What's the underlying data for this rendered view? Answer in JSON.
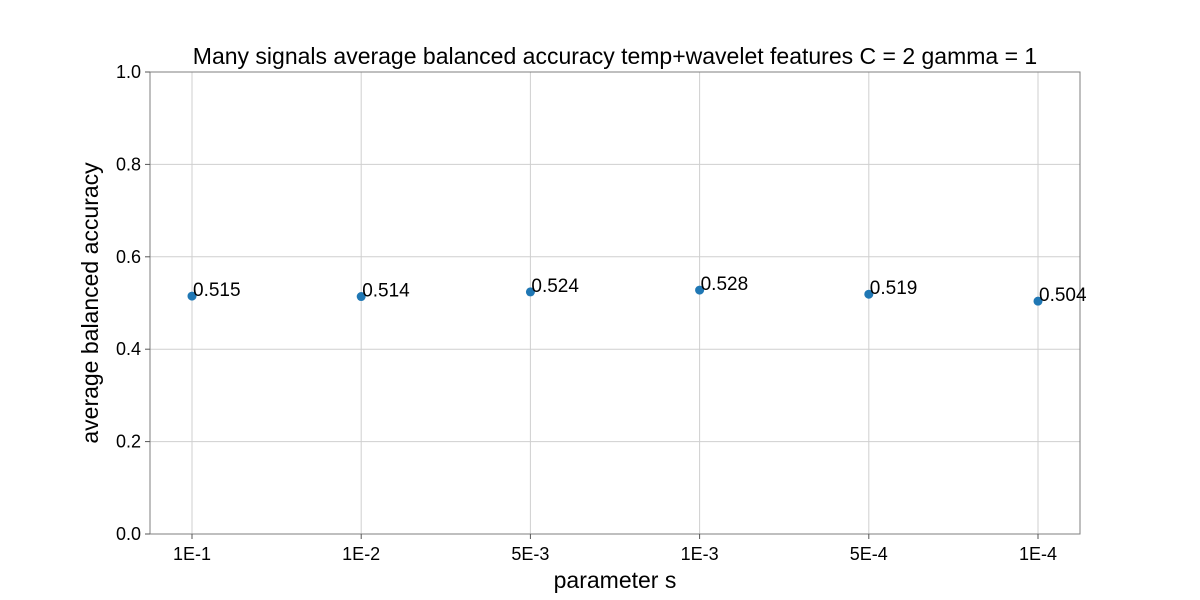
{
  "chart_data": {
    "type": "scatter",
    "title": "Many signals average balanced accuracy temp+wavelet features C = 2 gamma = 1",
    "xlabel": "parameter s",
    "ylabel": "average balanced accuracy",
    "categories": [
      "1E-1",
      "1E-2",
      "5E-3",
      "1E-3",
      "5E-4",
      "1E-4"
    ],
    "values": [
      0.515,
      0.514,
      0.524,
      0.528,
      0.519,
      0.504
    ],
    "data_labels": [
      "0.515",
      "0.514",
      "0.524",
      "0.528",
      "0.519",
      "0.504"
    ],
    "ylim": [
      0.0,
      1.0
    ],
    "yticks": [
      0.0,
      0.2,
      0.4,
      0.6,
      0.8,
      1.0
    ],
    "ytick_labels": [
      "0.0",
      "0.2",
      "0.4",
      "0.6",
      "0.8",
      "1.0"
    ],
    "grid": true,
    "marker_color": "#1f77b4"
  }
}
